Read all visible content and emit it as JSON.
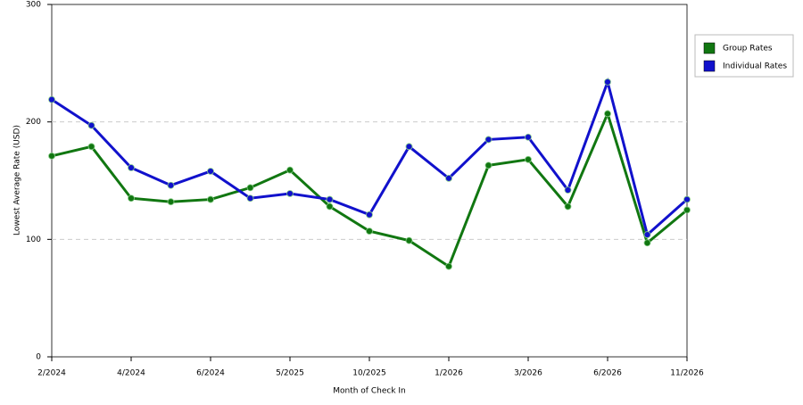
{
  "chart_data": {
    "type": "line",
    "x_label": "Month of Check In",
    "y_label": "Lowest Average Rate (USD)",
    "categories": [
      "2/2024",
      null,
      "4/2024",
      null,
      "6/2024",
      null,
      "5/2025",
      null,
      "10/2025",
      null,
      "1/2026",
      null,
      "3/2026",
      null,
      "6/2026",
      null,
      "11/2026"
    ],
    "series": [
      {
        "name": "Group Rates",
        "color": "#117711",
        "values": [
          171,
          179,
          135,
          132,
          134,
          144,
          159,
          128,
          107,
          99,
          77,
          163,
          168,
          128,
          207,
          97,
          125
        ]
      },
      {
        "name": "Individual Rates",
        "color": "#1111cc",
        "values": [
          219,
          197,
          161,
          146,
          158,
          135,
          139,
          134,
          121,
          179,
          152,
          185,
          187,
          142,
          234,
          104,
          134
        ]
      }
    ],
    "ylim": [
      0,
      300
    ],
    "yticks": [
      0,
      100,
      200,
      300
    ],
    "grid": true,
    "legend": "right"
  }
}
